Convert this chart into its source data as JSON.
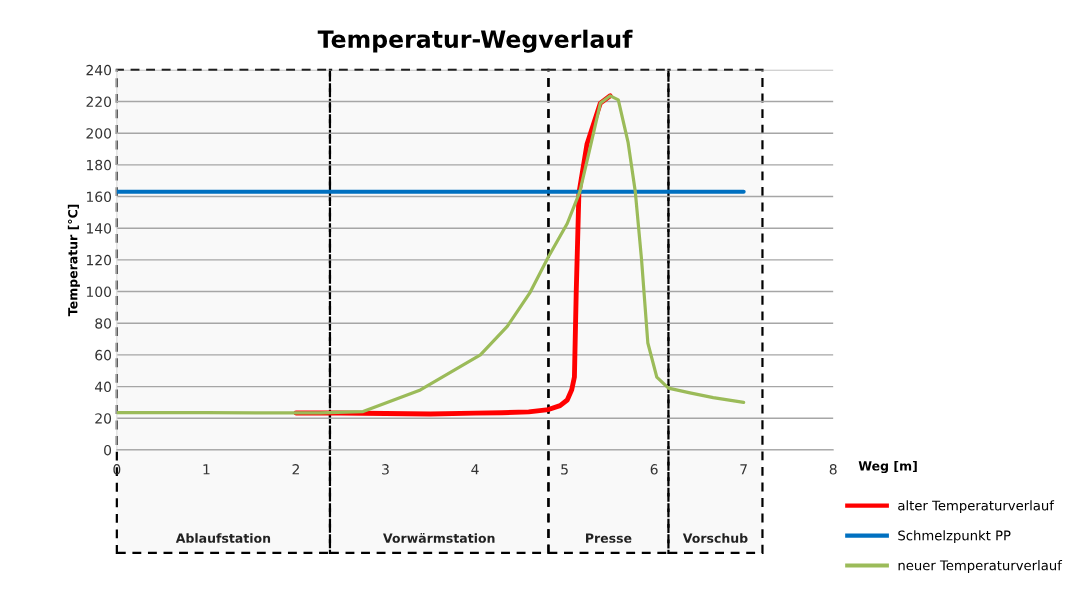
{
  "chart_data": {
    "type": "line",
    "title": "Temperatur-Wegverlauf",
    "xlabel": "Weg [m]",
    "ylabel": "Temperatur [°C]",
    "xlim": [
      0,
      8
    ],
    "xticks": [
      0,
      1,
      2,
      3,
      4,
      5,
      6,
      7,
      8
    ],
    "ylim": [
      0,
      240
    ],
    "yticks": [
      0,
      20,
      40,
      60,
      80,
      100,
      120,
      140,
      160,
      180,
      200,
      220,
      240
    ],
    "grid": "y",
    "legend": "bottom right",
    "marker": "none",
    "line_style": "solid",
    "series": [
      {
        "name": "alter Temperaturverlauf",
        "color": "#ff0000",
        "x": [
          2,
          2.5,
          3,
          3.5,
          4,
          4.3,
          4.6,
          4.82,
          4.95,
          5.03,
          5.08,
          5.11,
          5.13,
          5.16,
          5.25,
          5.4,
          5.51
        ],
        "values": [
          23.3,
          23.3,
          23,
          22.7,
          23.2,
          23.5,
          24,
          25.5,
          28,
          31.5,
          38,
          46,
          99,
          162,
          193,
          219,
          223.6
        ]
      },
      {
        "name": "Schmelzpunkt PP",
        "color": "#0070c0",
        "x": [
          0,
          7
        ],
        "values": [
          163,
          163
        ]
      },
      {
        "name": "neuer Temperaturverlauf",
        "color": "#9bbb59",
        "x": [
          0,
          1,
          2,
          2.27,
          2.75,
          3.39,
          4.06,
          4.36,
          4.61,
          4.82,
          5.03,
          5.17,
          5.29,
          5.4,
          5.51,
          5.6,
          5.71,
          5.79,
          5.86,
          5.93,
          6.03,
          6.16,
          6.4,
          6.66,
          7.0
        ],
        "values": [
          23.5,
          23.5,
          23.4,
          23.4,
          24.2,
          37.9,
          60,
          78,
          99,
          122,
          143,
          163,
          192,
          219,
          223.6,
          221,
          194,
          163,
          120,
          67.5,
          46,
          39,
          36,
          33,
          30
        ]
      }
    ],
    "bands": [
      {
        "axis": "x",
        "from": 0,
        "to": 2.38,
        "label": "Ablaufstation",
        "color": "#000000"
      },
      {
        "axis": "x",
        "from": 2.38,
        "to": 4.82,
        "label": "Vorwärmstation",
        "color": "#000000"
      },
      {
        "axis": "x",
        "from": 4.82,
        "to": 6.16,
        "label": "Presse",
        "color": "#000000"
      },
      {
        "axis": "x",
        "from": 6.16,
        "to": 7.21,
        "label": "Vorschub",
        "color": "#000000"
      }
    ]
  }
}
